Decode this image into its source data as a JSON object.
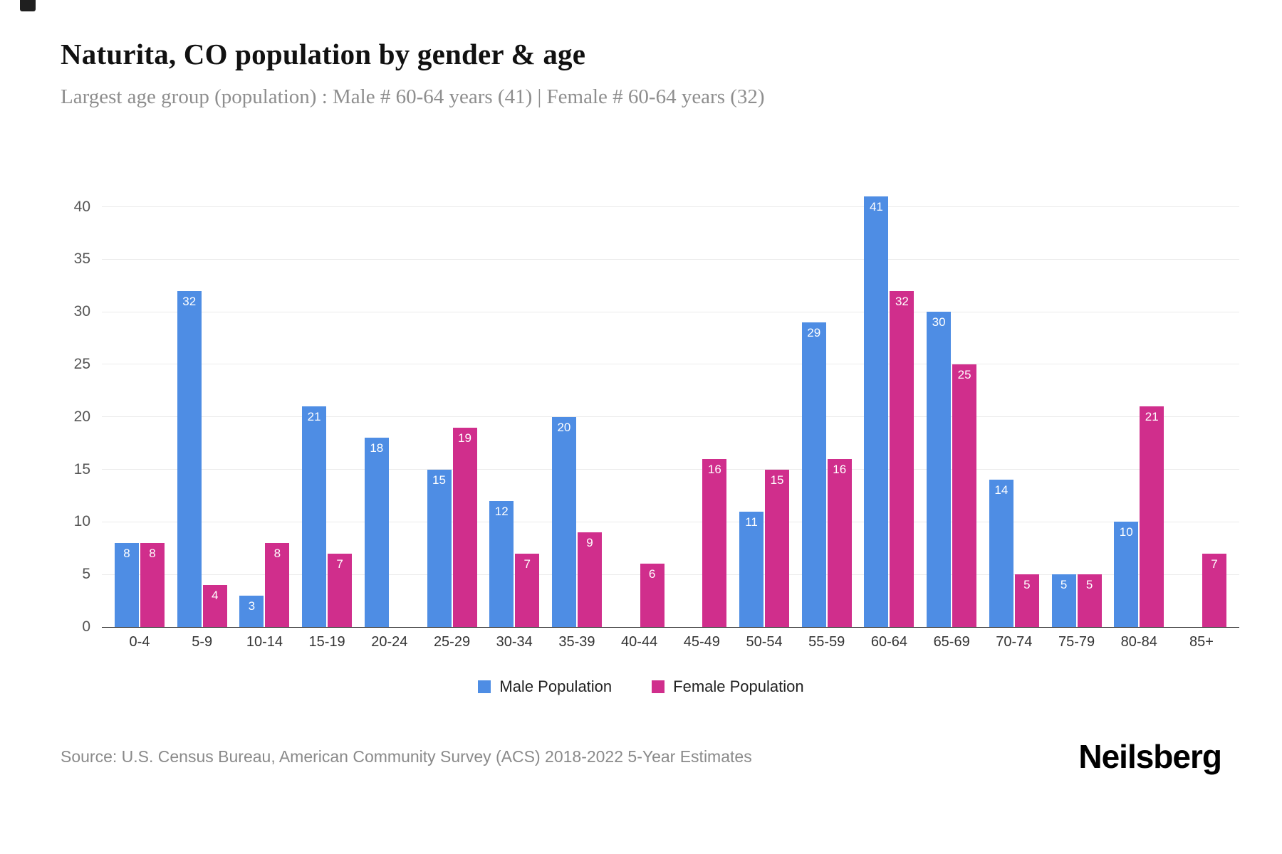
{
  "header": {
    "title": "Naturita, CO population by gender & age",
    "subtitle": "Largest age group (population) : Male # 60-64 years (41) | Female # 60-64 years (32)"
  },
  "chart_data": {
    "type": "bar",
    "title": "Naturita, CO population by gender & age",
    "categories": [
      "0-4",
      "5-9",
      "10-14",
      "15-19",
      "20-24",
      "25-29",
      "30-34",
      "35-39",
      "40-44",
      "45-49",
      "50-54",
      "55-59",
      "60-64",
      "65-69",
      "70-74",
      "75-79",
      "80-84",
      "85+"
    ],
    "series": [
      {
        "name": "Male Population",
        "color": "#4e8de4",
        "values": [
          8,
          32,
          3,
          21,
          18,
          15,
          12,
          20,
          0,
          0,
          11,
          29,
          41,
          30,
          14,
          5,
          10,
          0
        ]
      },
      {
        "name": "Female Population",
        "color": "#d02e8c",
        "values": [
          8,
          4,
          8,
          7,
          0,
          19,
          7,
          9,
          6,
          16,
          15,
          16,
          32,
          25,
          5,
          5,
          21,
          7
        ]
      }
    ],
    "xlabel": "",
    "ylabel": "",
    "ylim": [
      0,
      42
    ],
    "yticks": [
      0,
      5,
      10,
      15,
      20,
      25,
      30,
      35,
      40
    ],
    "grid": true,
    "legend_position": "bottom"
  },
  "footer": {
    "source": "Source: U.S. Census Bureau, American Community Survey (ACS) 2018-2022 5-Year Estimates",
    "brand": "Neilsberg"
  }
}
